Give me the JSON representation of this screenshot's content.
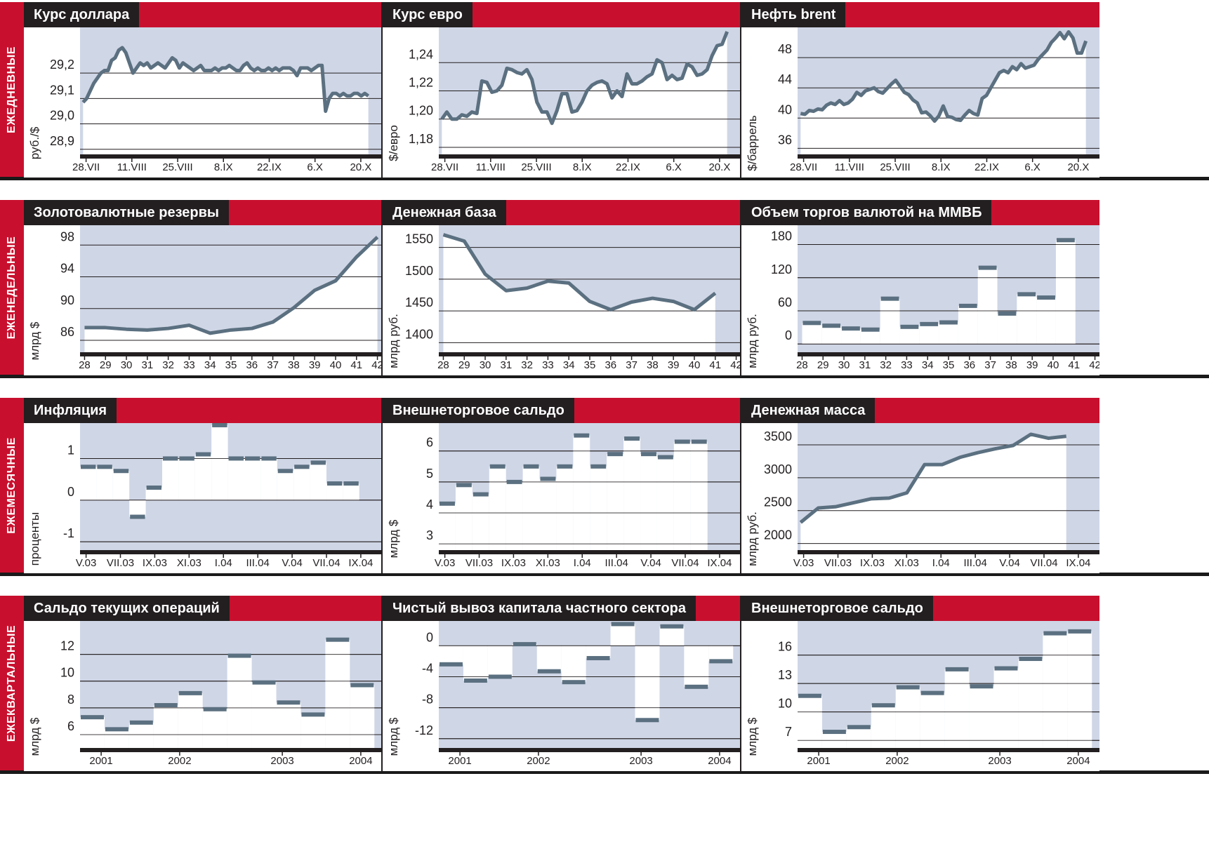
{
  "rows": [
    {
      "label": "ЕЖЕДНЕВНЫЕ",
      "panels": [
        {
          "title": "Курс доллара",
          "chart_data": {
            "type": "line",
            "ylabel": "руб./$",
            "ylim": [
              28.88,
              29.38
            ],
            "yticks": [
              28.9,
              29.0,
              29.1,
              29.2
            ],
            "ytick_labels": [
              "28,9",
              "29,0",
              "29,1",
              "29,2"
            ],
            "x_ticks": [
              "28.VII",
              "11.VIII",
              "25.VIII",
              "8.IX",
              "22.IX",
              "6.X",
              "20.X"
            ],
            "values": [
              29.085,
              29.1,
              29.13,
              29.16,
              29.18,
              29.2,
              29.21,
              29.21,
              29.25,
              29.26,
              29.29,
              29.3,
              29.28,
              29.24,
              29.2,
              29.22,
              29.24,
              29.23,
              29.24,
              29.22,
              29.23,
              29.24,
              29.23,
              29.22,
              29.24,
              29.26,
              29.25,
              29.22,
              29.24,
              29.23,
              29.22,
              29.21,
              29.22,
              29.23,
              29.21,
              29.21,
              29.21,
              29.22,
              29.21,
              29.22,
              29.22,
              29.23,
              29.22,
              29.21,
              29.21,
              29.23,
              29.24,
              29.22,
              29.21,
              29.22,
              29.21,
              29.21,
              29.22,
              29.21,
              29.22,
              29.21,
              29.22,
              29.22,
              29.22,
              29.21,
              29.19,
              29.22,
              29.22,
              29.22,
              29.21,
              29.22,
              29.23,
              29.23,
              29.05,
              29.1,
              29.12,
              29.12,
              29.11,
              29.12,
              29.11,
              29.11,
              29.12,
              29.12,
              29.11,
              29.12,
              29.11
            ],
            "current_band_start": 0.955
          }
        },
        {
          "title": "Курс евро",
          "chart_data": {
            "type": "line",
            "ylabel": "$/евро",
            "ylim": [
              1.175,
              1.265
            ],
            "yticks": [
              1.18,
              1.2,
              1.22,
              1.24
            ],
            "ytick_labels": [
              "1,18",
              "1,20",
              "1,22",
              "1,24"
            ],
            "x_ticks": [
              "28.VII",
              "11.VIII",
              "25.VIII",
              "8.IX",
              "22.IX",
              "6.X",
              "20.X"
            ],
            "values": [
              1.2,
              1.205,
              1.2,
              1.2,
              1.203,
              1.202,
              1.205,
              1.204,
              1.227,
              1.226,
              1.219,
              1.22,
              1.224,
              1.236,
              1.235,
              1.233,
              1.232,
              1.235,
              1.228,
              1.212,
              1.205,
              1.205,
              1.197,
              1.206,
              1.218,
              1.218,
              1.205,
              1.206,
              1.212,
              1.22,
              1.224,
              1.226,
              1.227,
              1.225,
              1.215,
              1.22,
              1.216,
              1.232,
              1.225,
              1.225,
              1.227,
              1.23,
              1.232,
              1.242,
              1.24,
              1.228,
              1.231,
              1.228,
              1.229,
              1.239,
              1.237,
              1.231,
              1.232,
              1.235,
              1.245,
              1.252,
              1.253,
              1.262
            ],
            "current_band_start": 0.955
          }
        },
        {
          "title": "Нефть brent",
          "chart_data": {
            "type": "line",
            "ylabel": "$/баррель",
            "ylim": [
              35.2,
              52.0
            ],
            "yticks": [
              36,
              40,
              44,
              48
            ],
            "ytick_labels": [
              "36",
              "40",
              "44",
              "48"
            ],
            "x_ticks": [
              "28.VII",
              "11.VIII",
              "25.VIII",
              "8.IX",
              "22.IX",
              "6.X",
              "20.X"
            ],
            "values": [
              40.6,
              40.5,
              41.0,
              40.9,
              41.2,
              41.1,
              41.7,
              42.0,
              41.8,
              42.3,
              41.8,
              42.0,
              42.5,
              43.4,
              43.0,
              43.6,
              43.8,
              44.0,
              43.5,
              43.3,
              43.9,
              44.5,
              45.0,
              44.2,
              43.4,
              43.1,
              42.4,
              42.0,
              40.7,
              40.8,
              40.3,
              39.6,
              40.3,
              41.6,
              40.2,
              40.1,
              39.8,
              39.7,
              40.4,
              41.0,
              40.6,
              40.4,
              42.6,
              43.0,
              44.0,
              45.0,
              46.0,
              46.3,
              46.0,
              46.8,
              46.4,
              47.2,
              46.6,
              46.8,
              47.0,
              47.8,
              48.4,
              49.0,
              50.0,
              50.6,
              51.3,
              50.5,
              51.4,
              50.6,
              48.6,
              48.6,
              50.2
            ],
            "current_band_start": 0.955
          }
        }
      ]
    },
    {
      "label": "ЕЖЕНЕДЕЛЬНЫЕ",
      "panels": [
        {
          "title": "Золотовалютные резервы",
          "chart_data": {
            "type": "line",
            "ylabel": "млрд $",
            "ylim": [
              84.5,
              100.5
            ],
            "yticks": [
              86,
              90,
              94,
              98
            ],
            "ytick_labels": [
              "86",
              "90",
              "94",
              "98"
            ],
            "x": [
              "28",
              "29",
              "30",
              "31",
              "32",
              "33",
              "34",
              "35",
              "36",
              "37",
              "38",
              "39",
              "40",
              "41",
              "42"
            ],
            "values": [
              87.6,
              87.6,
              87.4,
              87.3,
              87.5,
              87.9,
              86.9,
              87.3,
              87.5,
              88.3,
              90.1,
              92.3,
              93.5,
              96.5,
              99.0
            ],
            "current_band_start": 0.955
          }
        },
        {
          "title": "Денежная база",
          "chart_data": {
            "type": "line",
            "ylabel": "млрд руб.",
            "ylim": [
              1385,
              1585
            ],
            "yticks": [
              1400,
              1450,
              1500,
              1550
            ],
            "ytick_labels": [
              "1400",
              "1450",
              "1500",
              "1550"
            ],
            "x": [
              "28",
              "29",
              "30",
              "31",
              "32",
              "33",
              "34",
              "35",
              "36",
              "37",
              "38",
              "39",
              "40",
              "41",
              "42"
            ],
            "values": [
              1570,
              1560,
              1508,
              1482,
              1486,
              1497,
              1494,
              1465,
              1452,
              1464,
              1470,
              1465,
              1452,
              1478,
              null
            ],
            "current_band_start": 0.86
          }
        },
        {
          "title": "Объем торгов валютой на ММВБ",
          "chart_data": {
            "type": "step",
            "ylabel": "млрд руб.",
            "ylim": [
              -15,
              215
            ],
            "yticks": [
              0,
              60,
              120,
              180
            ],
            "ytick_labels": [
              "0",
              "60",
              "120",
              "180"
            ],
            "x": [
              "28",
              "29",
              "30",
              "31",
              "32",
              "33",
              "34",
              "35",
              "36",
              "37",
              "38",
              "39",
              "40",
              "41",
              "42"
            ],
            "values": [
              38,
              33,
              28,
              26,
              82,
              31,
              36,
              39,
              69,
              138,
              55,
              90,
              84,
              188,
              null
            ],
            "current_band_start": 0.955
          }
        }
      ]
    },
    {
      "label": "ЕЖЕМЕСЯЧНЫЕ",
      "panels": [
        {
          "title": "Инфляция",
          "chart_data": {
            "type": "step",
            "ylabel": "проценты",
            "ylim": [
              -1.2,
              1.85
            ],
            "yticks": [
              -1,
              0,
              1
            ],
            "ytick_labels": [
              "-1",
              "0",
              "1"
            ],
            "x_ticks": [
              "V.03",
              "VII.03",
              "IX.03",
              "XI.03",
              "I.04",
              "III.04",
              "V.04",
              "VII.04",
              "IX.04"
            ],
            "values": [
              0.8,
              0.8,
              0.7,
              -0.4,
              0.3,
              1.0,
              1.0,
              1.1,
              1.8,
              1.0,
              1.0,
              1.0,
              0.7,
              0.8,
              0.9,
              0.4,
              0.4
            ],
            "current_band_start": 0.925
          }
        },
        {
          "title": "Внешнеторговое сальдо",
          "chart_data": {
            "type": "step",
            "ylabel": "млрд $",
            "ylim": [
              2.8,
              6.9
            ],
            "yticks": [
              3,
              4,
              5,
              6
            ],
            "ytick_labels": [
              "3",
              "4",
              "5",
              "6"
            ],
            "x_ticks": [
              "V.03",
              "VII.03",
              "IX.03",
              "XI.03",
              "I.04",
              "III.04",
              "V.04",
              "VII.04",
              "IX.04"
            ],
            "values": [
              4.3,
              4.9,
              4.6,
              5.5,
              5.0,
              5.5,
              5.1,
              5.5,
              6.5,
              5.5,
              5.9,
              6.4,
              5.9,
              5.8,
              6.3,
              6.3
            ],
            "current_band_start": 0.89
          }
        },
        {
          "title": "Денежная масса",
          "chart_data": {
            "type": "line",
            "ylabel": "млрд руб.",
            "ylim": [
              1900,
              3830
            ],
            "yticks": [
              2000,
              2500,
              3000,
              3500
            ],
            "ytick_labels": [
              "2000",
              "2500",
              "3000",
              "3500"
            ],
            "x_ticks": [
              "V.03",
              "VII.03",
              "IX.03",
              "XI.03",
              "I.04",
              "III.04",
              "V.04",
              "VII.04",
              "IX.04"
            ],
            "values": [
              2320,
              2540,
              2560,
              2620,
              2680,
              2690,
              2770,
              3200,
              3200,
              3310,
              3380,
              3440,
              3490,
              3660,
              3600,
              3630
            ],
            "current_band_start": 0.89
          }
        }
      ]
    },
    {
      "label": "ЕЖЕКВАРТАЛЬНЫЕ",
      "panels": [
        {
          "title": "Сальдо текущих операций",
          "chart_data": {
            "type": "step",
            "ylabel": "млрд $",
            "ylim": [
              5.0,
              14.5
            ],
            "yticks": [
              6,
              8,
              10,
              12
            ],
            "ytick_labels": [
              "6",
              "8",
              "10",
              "12"
            ],
            "x_ticks": [
              "2001",
              "2002",
              "2003",
              "2004"
            ],
            "x_tick_positions": [
              0.07,
              0.33,
              0.67,
              0.93
            ],
            "values": [
              7.3,
              6.4,
              6.9,
              8.2,
              9.1,
              7.9,
              11.9,
              9.9,
              8.4,
              7.5,
              13.1,
              9.7
            ],
            "current_band_start": 0.975
          }
        },
        {
          "title": "Чистый вывоз капитала частного сектора",
          "chart_data": {
            "type": "step",
            "ylabel": "млрд $",
            "ylim": [
              -13.2,
              3.2
            ],
            "yticks": [
              -12,
              -8,
              -4,
              0
            ],
            "ytick_labels": [
              "-12",
              "-8",
              "-4",
              "0"
            ],
            "x_ticks": [
              "2001",
              "2002",
              "2003",
              "2004"
            ],
            "x_tick_positions": [
              0.07,
              0.33,
              0.67,
              0.93
            ],
            "values": [
              -2.4,
              -4.5,
              -4.0,
              0.2,
              -3.3,
              -4.7,
              -1.6,
              2.8,
              -9.6,
              2.5,
              -5.3,
              -2.0
            ],
            "current_band_start": 0.975
          }
        },
        {
          "title": "Внешнеторговое сальдо",
          "chart_data": {
            "type": "step",
            "ylabel": "млрд $",
            "ylim": [
              6.2,
              19.6
            ],
            "yticks": [
              7,
              10,
              13,
              16
            ],
            "ytick_labels": [
              "7",
              "10",
              "13",
              "16"
            ],
            "x_ticks": [
              "2001",
              "2002",
              "2003",
              "2004"
            ],
            "x_tick_positions": [
              0.07,
              0.33,
              0.67,
              0.93
            ],
            "values": [
              11.7,
              7.9,
              8.4,
              10.7,
              12.6,
              12.0,
              14.5,
              12.7,
              14.6,
              15.6,
              18.3,
              18.5
            ],
            "current_band_start": 0.975
          }
        }
      ]
    }
  ],
  "colors": {
    "red": "#c8102e",
    "dark": "#231f20",
    "band": "#cfd6e6",
    "line": "#5b7080",
    "white": "#ffffff"
  }
}
